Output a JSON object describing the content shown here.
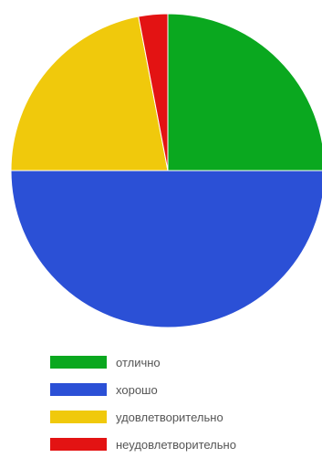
{
  "chart_data": {
    "type": "pie",
    "title": "",
    "series": [
      {
        "name": "отлично",
        "value": 25,
        "color": "#0aa81f"
      },
      {
        "name": "хорошо",
        "value": 50,
        "color": "#2b50d6"
      },
      {
        "name": "удовлетворительно",
        "value": 22,
        "color": "#f0c90c"
      },
      {
        "name": "неудовлетворительно",
        "value": 3,
        "color": "#e31313"
      }
    ],
    "legend": {
      "position": "bottom-left"
    },
    "start_angle": "12 o'clock",
    "direction": "clockwise"
  }
}
